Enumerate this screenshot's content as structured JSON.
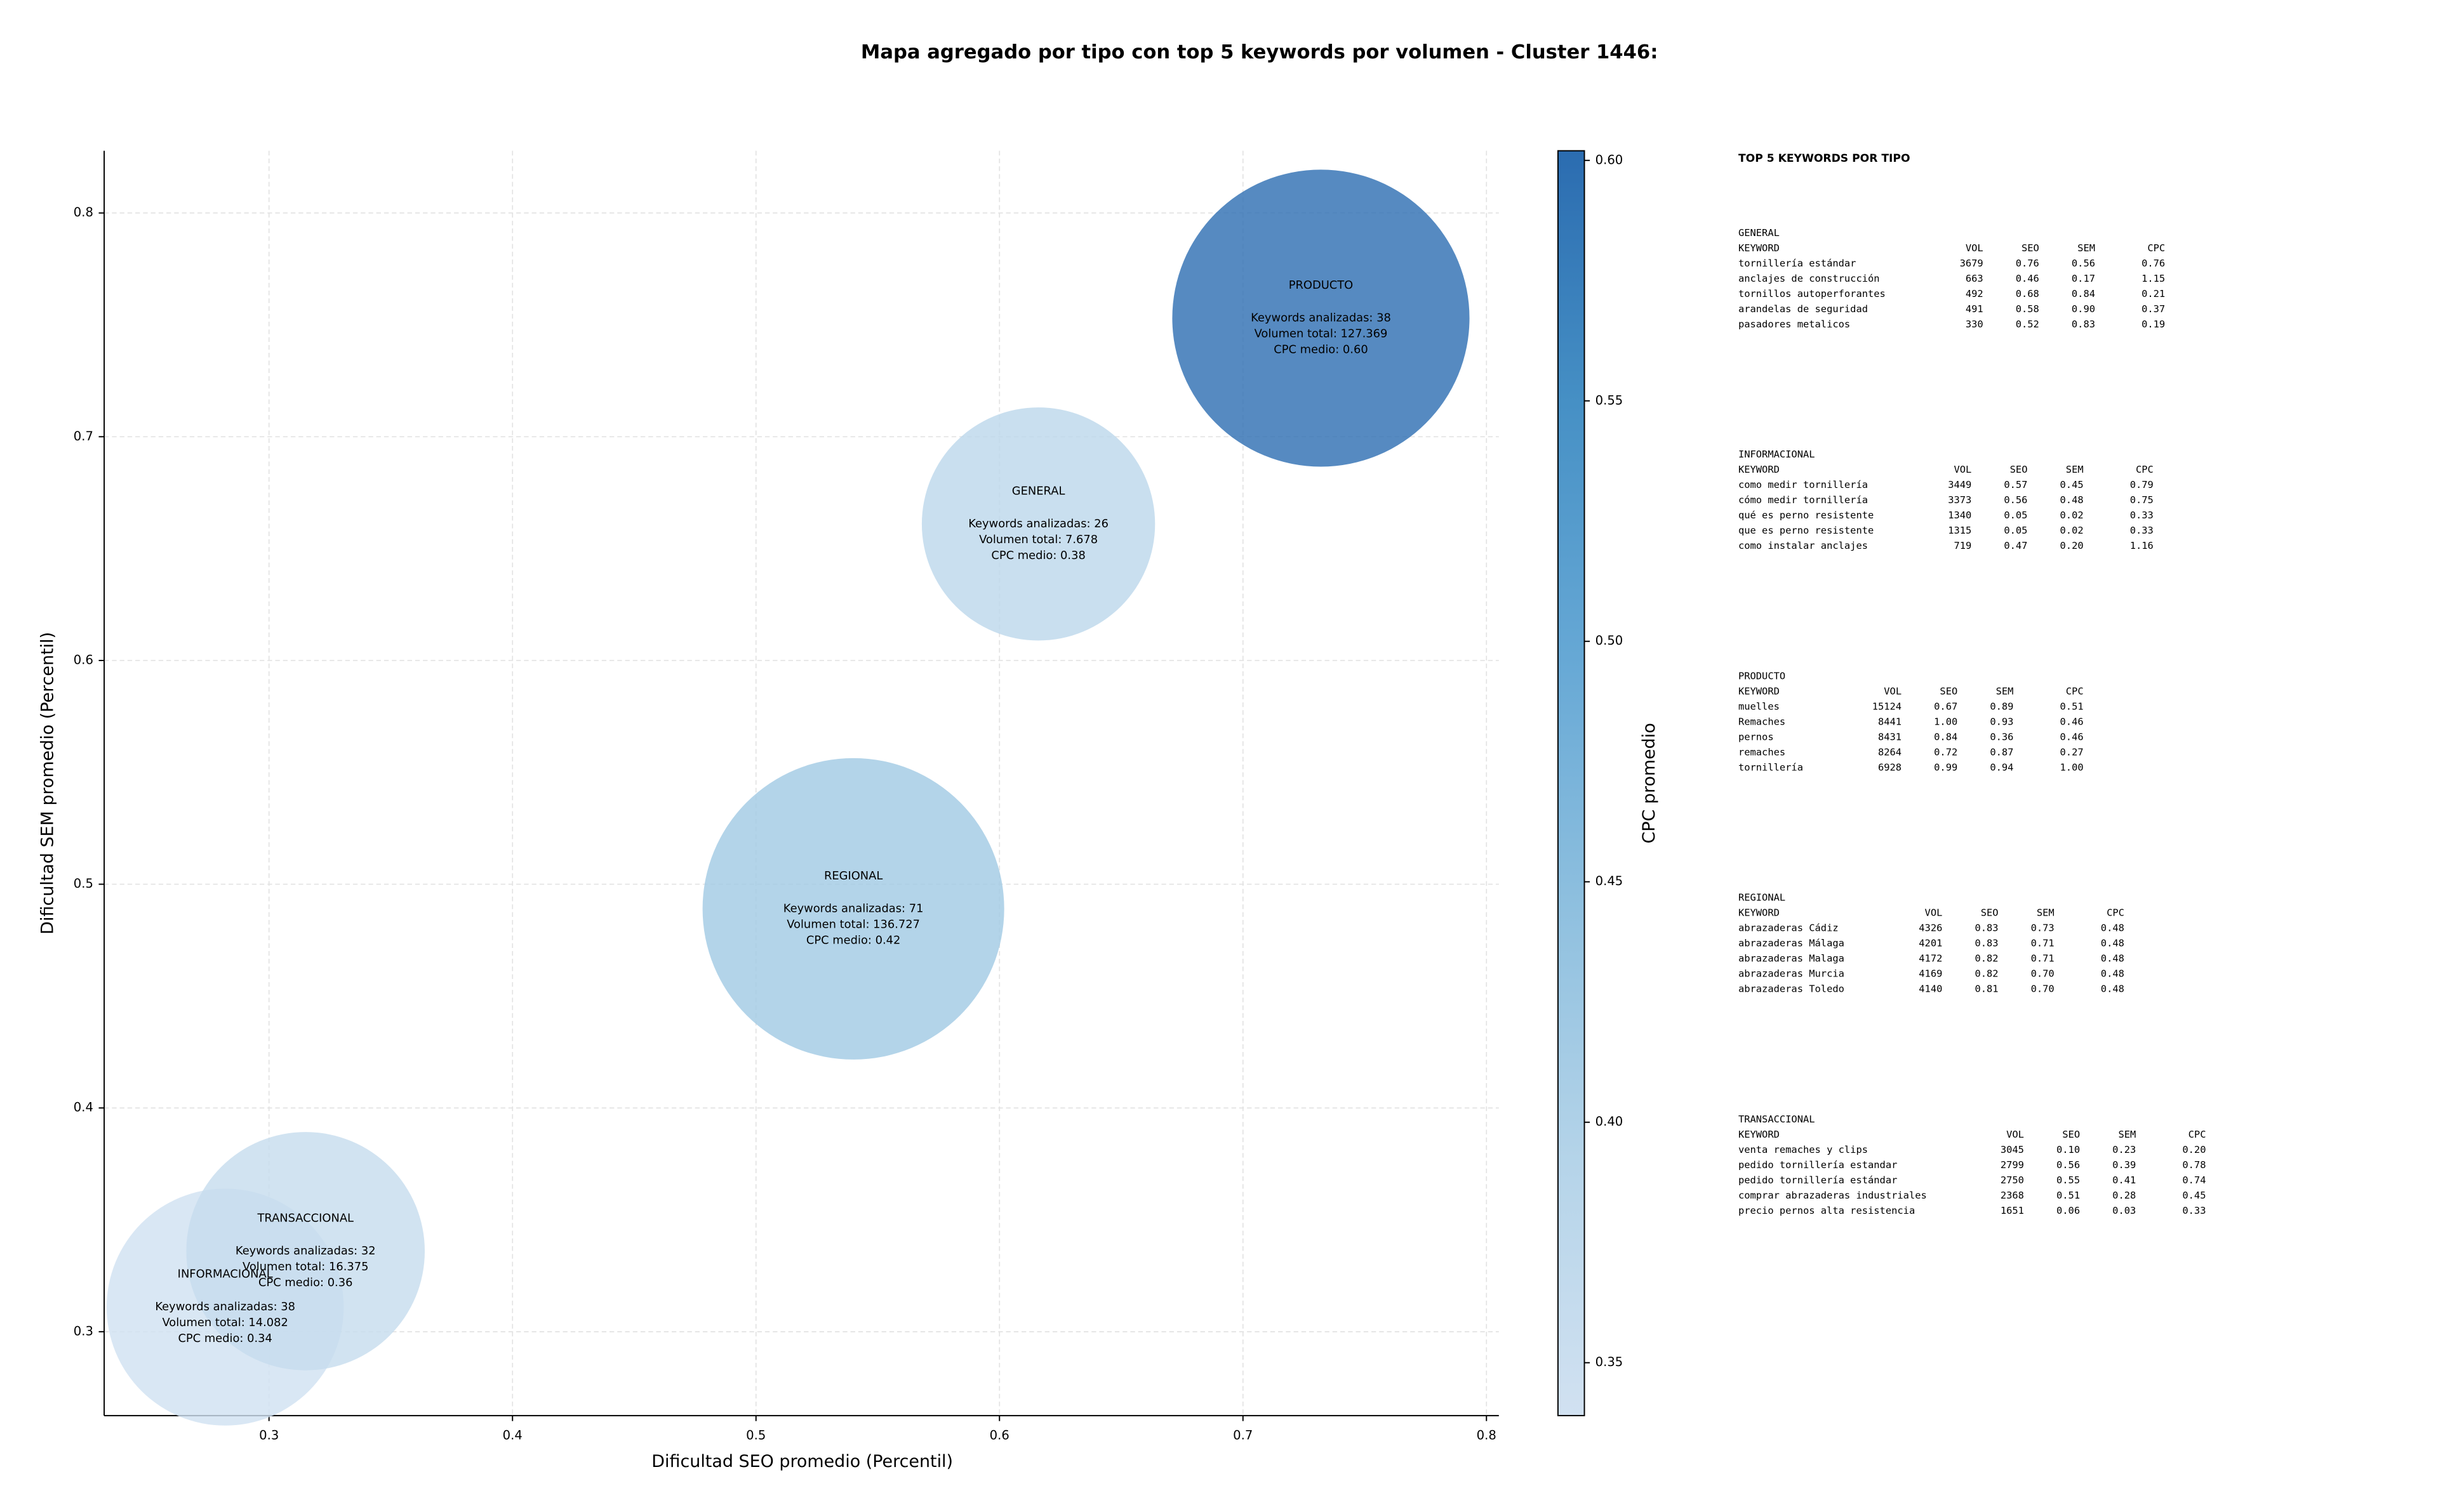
{
  "chart_data": {
    "type": "bubble",
    "title": "Mapa agregado por tipo con top 5 keywords por volumen - Cluster 1446:",
    "xlabel": "Dificultad SEO promedio (Percentil)",
    "ylabel": "Dificultad SEM promedio (Percentil)",
    "xlim": [
      0.2323,
      0.8051
    ],
    "ylim": [
      0.2625,
      0.8278
    ],
    "xticks": [
      0.3,
      0.4,
      0.5,
      0.6,
      0.7,
      0.8
    ],
    "yticks": [
      0.3,
      0.4,
      0.5,
      0.6,
      0.7,
      0.8
    ],
    "grid": true,
    "categories": [
      "INFORMACIONAL",
      "TRANSACCIONAL",
      "REGIONAL",
      "GENERAL",
      "PRODUCTO"
    ],
    "x": [
      0.282,
      0.315,
      0.54,
      0.616,
      0.732
    ],
    "values": [
      0.311,
      0.336,
      0.489,
      0.661,
      0.753
    ],
    "sizes": [
      14082,
      16375,
      136727,
      7678,
      127369
    ],
    "color_values": [
      0.34,
      0.36,
      0.42,
      0.38,
      0.6
    ],
    "annotations": [
      [
        "Keywords analizadas: 38",
        "Volumen total: 14.082",
        "CPC medio: 0.34"
      ],
      [
        "Keywords analizadas: 32",
        "Volumen total: 16.375",
        "CPC medio: 0.36"
      ],
      [
        "Keywords analizadas: 71",
        "Volumen total: 136.727",
        "CPC medio: 0.42"
      ],
      [
        "Keywords analizadas: 26",
        "Volumen total: 7.678",
        "CPC medio: 0.38"
      ],
      [
        "Keywords analizadas: 38",
        "Volumen total: 127.369",
        "CPC medio: 0.60"
      ]
    ],
    "opacity": 0.8,
    "colorbar": {
      "label": "CPC promedio",
      "lim": [
        0.339,
        0.602
      ],
      "ticks": [
        0.35,
        {
          "value": 0.4,
          "label": "0.40"
        },
        0.45,
        {
          "value": 0.5,
          "label": "0.50"
        },
        0.55,
        {
          "value": 0.6,
          "label": "0.60"
        }
      ],
      "colormap": [
        "#d1e1f1",
        "#b5d4e9",
        "#8fc0df",
        "#66a8d5",
        "#4690c5",
        "#2b6cb0"
      ]
    }
  },
  "side_panel": {
    "title": "TOP 5 KEYWORDS POR TIPO",
    "tables": [
      {
        "title": "GENERAL",
        "header": [
          "KEYWORD",
          "VOL",
          "SEO",
          "SEM",
          "CPC"
        ],
        "rows": [
          [
            "tornillería estándar",
            "3679",
            "0.76",
            "0.56",
            "0.76"
          ],
          [
            "anclajes de construcción",
            "663",
            "0.46",
            "0.17",
            "1.15"
          ],
          [
            "tornillos autoperforantes",
            "492",
            "0.68",
            "0.84",
            "0.21"
          ],
          [
            "arandelas de seguridad",
            "491",
            "0.58",
            "0.90",
            "0.37"
          ],
          [
            "pasadores metalicos",
            "330",
            "0.52",
            "0.83",
            "0.19"
          ]
        ]
      },
      {
        "title": "INFORMACIONAL",
        "header": [
          "KEYWORD",
          "VOL",
          "SEO",
          "SEM",
          "CPC"
        ],
        "rows": [
          [
            "como medir tornillería",
            "3449",
            "0.57",
            "0.45",
            "0.79"
          ],
          [
            "cómo medir tornillería",
            "3373",
            "0.56",
            "0.48",
            "0.75"
          ],
          [
            "qué es perno resistente",
            "1340",
            "0.05",
            "0.02",
            "0.33"
          ],
          [
            "que es perno resistente",
            "1315",
            "0.05",
            "0.02",
            "0.33"
          ],
          [
            "como instalar anclajes",
            "719",
            "0.47",
            "0.20",
            "1.16"
          ]
        ]
      },
      {
        "title": "PRODUCTO",
        "header": [
          "KEYWORD",
          "VOL",
          "SEO",
          "SEM",
          "CPC"
        ],
        "rows": [
          [
            "muelles",
            "15124",
            "0.67",
            "0.89",
            "0.51"
          ],
          [
            "Remaches",
            "8441",
            "1.00",
            "0.93",
            "0.46"
          ],
          [
            "pernos",
            "8431",
            "0.84",
            "0.36",
            "0.46"
          ],
          [
            "remaches",
            "8264",
            "0.72",
            "0.87",
            "0.27"
          ],
          [
            "tornillería",
            "6928",
            "0.99",
            "0.94",
            "1.00"
          ]
        ]
      },
      {
        "title": "REGIONAL",
        "header": [
          "KEYWORD",
          "VOL",
          "SEO",
          "SEM",
          "CPC"
        ],
        "rows": [
          [
            "abrazaderas Cádiz",
            "4326",
            "0.83",
            "0.73",
            "0.48"
          ],
          [
            "abrazaderas Málaga",
            "4201",
            "0.83",
            "0.71",
            "0.48"
          ],
          [
            "abrazaderas Malaga",
            "4172",
            "0.82",
            "0.71",
            "0.48"
          ],
          [
            "abrazaderas Murcia",
            "4169",
            "0.82",
            "0.70",
            "0.48"
          ],
          [
            "abrazaderas Toledo",
            "4140",
            "0.81",
            "0.70",
            "0.48"
          ]
        ]
      },
      {
        "title": "TRANSACCIONAL",
        "header": [
          "KEYWORD",
          "VOL",
          "SEO",
          "SEM",
          "CPC"
        ],
        "rows": [
          [
            "venta remaches y clips",
            "3045",
            "0.10",
            "0.23",
            "0.20"
          ],
          [
            "pedido tornillería estandar",
            "2799",
            "0.56",
            "0.39",
            "0.78"
          ],
          [
            "pedido tornillería estándar",
            "2750",
            "0.55",
            "0.41",
            "0.74"
          ],
          [
            "comprar abrazaderas industriales",
            "2368",
            "0.51",
            "0.28",
            "0.45"
          ],
          [
            "precio pernos alta resistencia",
            "1651",
            "0.06",
            "0.03",
            "0.33"
          ]
        ]
      }
    ]
  }
}
